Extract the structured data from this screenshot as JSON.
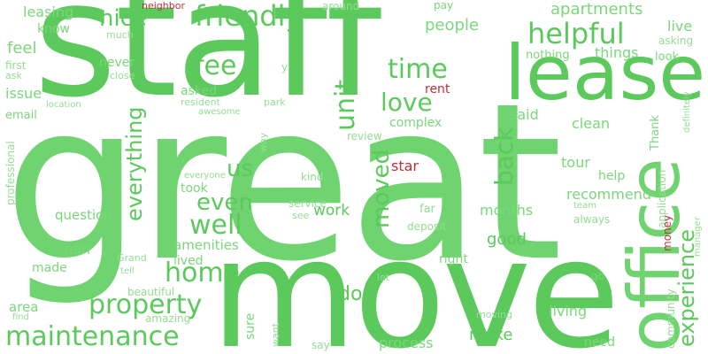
{
  "word_cloud": {
    "background_color": "#ffffff",
    "palette": {
      "green": "#5cc95c",
      "red": "#c0303a"
    },
    "words": {
      "great": "great",
      "staff": "staff",
      "move": "move",
      "lease": "lease",
      "office": "office",
      "friendly": "friendly",
      "helpful": "helpful",
      "nice": "nice",
      "maintenance": "maintenance",
      "property": "property",
      "home": "home",
      "well": "well",
      "even": "even",
      "us": "us",
      "fee": "fee",
      "time": "time",
      "love": "love",
      "unit": "unit",
      "moved": "moved",
      "back": "back",
      "everything": "everything",
      "experience": "experience",
      "people": "people",
      "apartments": "apartments",
      "things": "things",
      "leasing": "leasing",
      "neighbor": "neighbor",
      "around": "around",
      "pay": "pay",
      "know": "know",
      "much": "much",
      "live": "live",
      "asking": "asking",
      "look": "look",
      "nothing": "nothing",
      "feel": "feel",
      "first": "first",
      "ask": "ask",
      "never": "never",
      "close": "close",
      "y": "y",
      "issue": "issue",
      "asked": "asked",
      "resident": "resident",
      "location": "location",
      "awesome": "awesome",
      "email": "email",
      "park": "park",
      "rent": "rent",
      "said": "said",
      "complex": "complex",
      "clean": "clean",
      "review": "review",
      "Thank": "Thank",
      "definitely": "definitely",
      "professional": "professional",
      "way": "way",
      "everyone": "everyone",
      "star": "star",
      "tour": "tour",
      "help": "help",
      "application": "application",
      "took": "took",
      "recommend": "recommend",
      "team": "team",
      "kind": "kind",
      "question": "question",
      "service": "service",
      "see": "see",
      "work": "work",
      "far": "far",
      "months": "months",
      "always": "always",
      "money": "money",
      "manager": "manager",
      "nan": "nan",
      "amenities": "amenities",
      "deposit": "deposit",
      "good": "good",
      "community": "community",
      "made": "made",
      "Grand": "Grand",
      "tell": "tell",
      "lived": "lived",
      "right": "right",
      "dog": "dog",
      "let": "let",
      "go": "go",
      "beautiful": "beautiful",
      "area": "area",
      "find": "find",
      "amazing": "amazing",
      "sure": "sure",
      "want": "want",
      "moving": "moving",
      "living": "living",
      "make": "make",
      "process": "process",
      "say": "say",
      "need": "need"
    }
  }
}
